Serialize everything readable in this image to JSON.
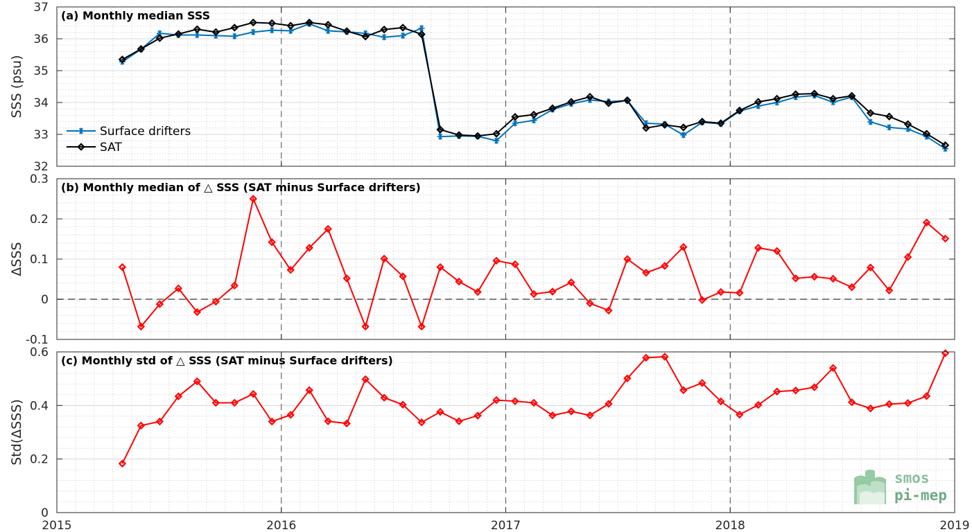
{
  "x_axis": {
    "range": [
      2015,
      2019
    ],
    "ticks": [
      "2015",
      "2016",
      "2017",
      "2018",
      "2019"
    ]
  },
  "logo": {
    "line1": "smos",
    "line2": "pi-mep",
    "color": "#7fb58f"
  },
  "colors": {
    "drifters": "#0072bd",
    "sat": "#000000",
    "delta": "#ff0000"
  },
  "chart_data": [
    {
      "type": "line",
      "title": "(a) Monthly median SSS",
      "ylabel": "SSS (psu)",
      "ylim": [
        32,
        37
      ],
      "yticks": [
        "32",
        "33",
        "34",
        "35",
        "36",
        "37"
      ],
      "grid": true,
      "legend_position": "lower-left",
      "x": [
        "2015-04",
        "2015-05",
        "2015-06",
        "2015-07",
        "2015-08",
        "2015-09",
        "2015-10",
        "2015-11",
        "2015-12",
        "2016-01",
        "2016-02",
        "2016-03",
        "2016-04",
        "2016-05",
        "2016-06",
        "2016-07",
        "2016-08",
        "2016-09",
        "2016-10",
        "2016-11",
        "2016-12",
        "2017-01",
        "2017-02",
        "2017-03",
        "2017-04",
        "2017-05",
        "2017-06",
        "2017-07",
        "2017-08",
        "2017-09",
        "2017-10",
        "2017-11",
        "2017-12",
        "2018-01",
        "2018-02",
        "2018-03",
        "2018-04",
        "2018-05",
        "2018-06",
        "2018-07",
        "2018-08",
        "2018-09",
        "2018-10",
        "2018-11",
        "2018-12"
      ],
      "series": [
        {
          "name": "Surface drifters",
          "marker": "asterisk",
          "values": [
            35.28,
            35.67,
            36.17,
            36.12,
            36.12,
            36.1,
            36.08,
            36.21,
            36.27,
            36.25,
            36.47,
            36.25,
            36.22,
            36.17,
            36.05,
            36.1,
            36.33,
            32.93,
            32.95,
            32.94,
            32.8,
            33.35,
            33.44,
            33.78,
            33.96,
            34.08,
            34.03,
            34.06,
            33.35,
            33.32,
            32.98,
            33.38,
            33.33,
            33.73,
            33.89,
            34.0,
            34.17,
            34.22,
            34.01,
            34.17,
            33.39,
            33.22,
            33.17,
            32.93,
            32.55
          ]
        },
        {
          "name": "SAT",
          "marker": "diamond",
          "values": [
            35.35,
            35.68,
            36.02,
            36.15,
            36.3,
            36.21,
            36.35,
            36.51,
            36.49,
            36.41,
            36.51,
            36.44,
            36.24,
            36.07,
            36.29,
            36.35,
            36.14,
            33.15,
            32.98,
            32.95,
            33.02,
            33.55,
            33.62,
            33.82,
            34.02,
            34.18,
            33.98,
            34.07,
            33.2,
            33.3,
            33.22,
            33.4,
            33.35,
            33.75,
            34.02,
            34.12,
            34.26,
            34.28,
            34.12,
            34.21,
            33.67,
            33.56,
            33.32,
            33.02,
            32.66
          ]
        }
      ]
    },
    {
      "type": "line",
      "title": "(b) Monthly median of △ SSS (SAT minus Surface drifters)",
      "ylabel": "ΔSSS",
      "ylim": [
        -0.1,
        0.3
      ],
      "yticks": [
        "-0.1",
        "0",
        "0.1",
        "0.2",
        "0.3"
      ],
      "grid": true,
      "reference_line": 0,
      "x": [
        "2015-04",
        "2015-05",
        "2015-06",
        "2015-07",
        "2015-08",
        "2015-09",
        "2015-10",
        "2015-11",
        "2015-12",
        "2016-01",
        "2016-02",
        "2016-03",
        "2016-04",
        "2016-05",
        "2016-06",
        "2016-07",
        "2016-08",
        "2016-09",
        "2016-10",
        "2016-11",
        "2016-12",
        "2017-01",
        "2017-02",
        "2017-03",
        "2017-04",
        "2017-05",
        "2017-06",
        "2017-07",
        "2017-08",
        "2017-09",
        "2017-10",
        "2017-11",
        "2017-12",
        "2018-01",
        "2018-02",
        "2018-03",
        "2018-04",
        "2018-05",
        "2018-06",
        "2018-07",
        "2018-08",
        "2018-09",
        "2018-10",
        "2018-11",
        "2018-12"
      ],
      "series": [
        {
          "marker": "diamond",
          "values": [
            0.08,
            -0.068,
            -0.012,
            0.027,
            -0.032,
            -0.006,
            0.034,
            0.25,
            0.142,
            0.073,
            0.128,
            0.175,
            0.052,
            -0.068,
            0.101,
            0.057,
            -0.068,
            0.08,
            0.044,
            0.018,
            0.096,
            0.087,
            0.013,
            0.019,
            0.042,
            -0.01,
            -0.028,
            0.1,
            0.066,
            0.083,
            0.13,
            -0.002,
            0.018,
            0.016,
            0.128,
            0.12,
            0.052,
            0.056,
            0.051,
            0.03,
            0.079,
            0.022,
            0.105,
            0.191,
            0.151
          ]
        }
      ]
    },
    {
      "type": "line",
      "title": "(c) Monthly std of △ SSS (SAT minus Surface drifters)",
      "ylabel": "Std(ΔSSS)",
      "ylim": [
        0,
        0.6
      ],
      "yticks": [
        "0",
        "0.2",
        "0.4",
        "0.6"
      ],
      "grid": true,
      "x": [
        "2015-04",
        "2015-05",
        "2015-06",
        "2015-07",
        "2015-08",
        "2015-09",
        "2015-10",
        "2015-11",
        "2015-12",
        "2016-01",
        "2016-02",
        "2016-03",
        "2016-04",
        "2016-05",
        "2016-06",
        "2016-07",
        "2016-08",
        "2016-09",
        "2016-10",
        "2016-11",
        "2016-12",
        "2017-01",
        "2017-02",
        "2017-03",
        "2017-04",
        "2017-05",
        "2017-06",
        "2017-07",
        "2017-08",
        "2017-09",
        "2017-10",
        "2017-11",
        "2017-12",
        "2018-01",
        "2018-02",
        "2018-03",
        "2018-04",
        "2018-05",
        "2018-06",
        "2018-07",
        "2018-08",
        "2018-09",
        "2018-10",
        "2018-11",
        "2018-12"
      ],
      "series": [
        {
          "marker": "diamond",
          "values": [
            0.183,
            0.325,
            0.34,
            0.434,
            0.49,
            0.41,
            0.41,
            0.443,
            0.34,
            0.365,
            0.457,
            0.341,
            0.333,
            0.498,
            0.429,
            0.403,
            0.337,
            0.376,
            0.341,
            0.362,
            0.42,
            0.416,
            0.41,
            0.363,
            0.378,
            0.363,
            0.406,
            0.501,
            0.578,
            0.582,
            0.457,
            0.484,
            0.415,
            0.366,
            0.402,
            0.452,
            0.456,
            0.468,
            0.54,
            0.412,
            0.389,
            0.405,
            0.409,
            0.435,
            0.595
          ]
        }
      ]
    }
  ]
}
